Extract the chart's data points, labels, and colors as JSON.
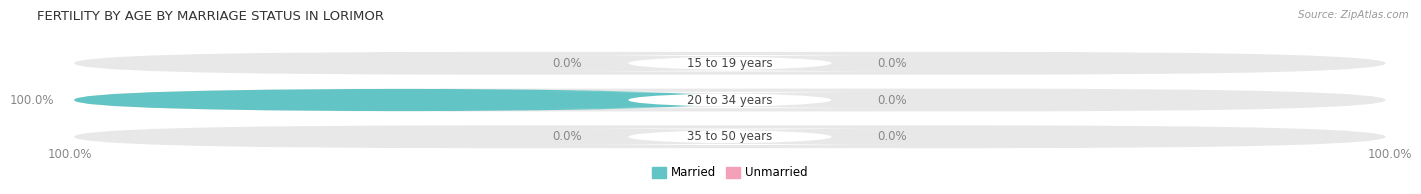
{
  "title": "FERTILITY BY AGE BY MARRIAGE STATUS IN LORIMOR",
  "source": "Source: ZipAtlas.com",
  "rows": [
    {
      "label": "15 to 19 years",
      "married": 0.0,
      "unmarried": 0.0
    },
    {
      "label": "20 to 34 years",
      "married": 100.0,
      "unmarried": 0.0
    },
    {
      "label": "35 to 50 years",
      "married": 0.0,
      "unmarried": 0.0
    }
  ],
  "married_color": "#62C4C4",
  "unmarried_color": "#F4A0B8",
  "bar_bg_color": "#E8E8E8",
  "label_fontsize": 8.5,
  "title_fontsize": 9.5,
  "source_fontsize": 7.5,
  "legend_married": "Married",
  "legend_unmarried": "Unmarried",
  "left_axis_label": "100.0%",
  "right_axis_label": "100.0%",
  "value_color": "#888888",
  "label_text_color": "#444444"
}
